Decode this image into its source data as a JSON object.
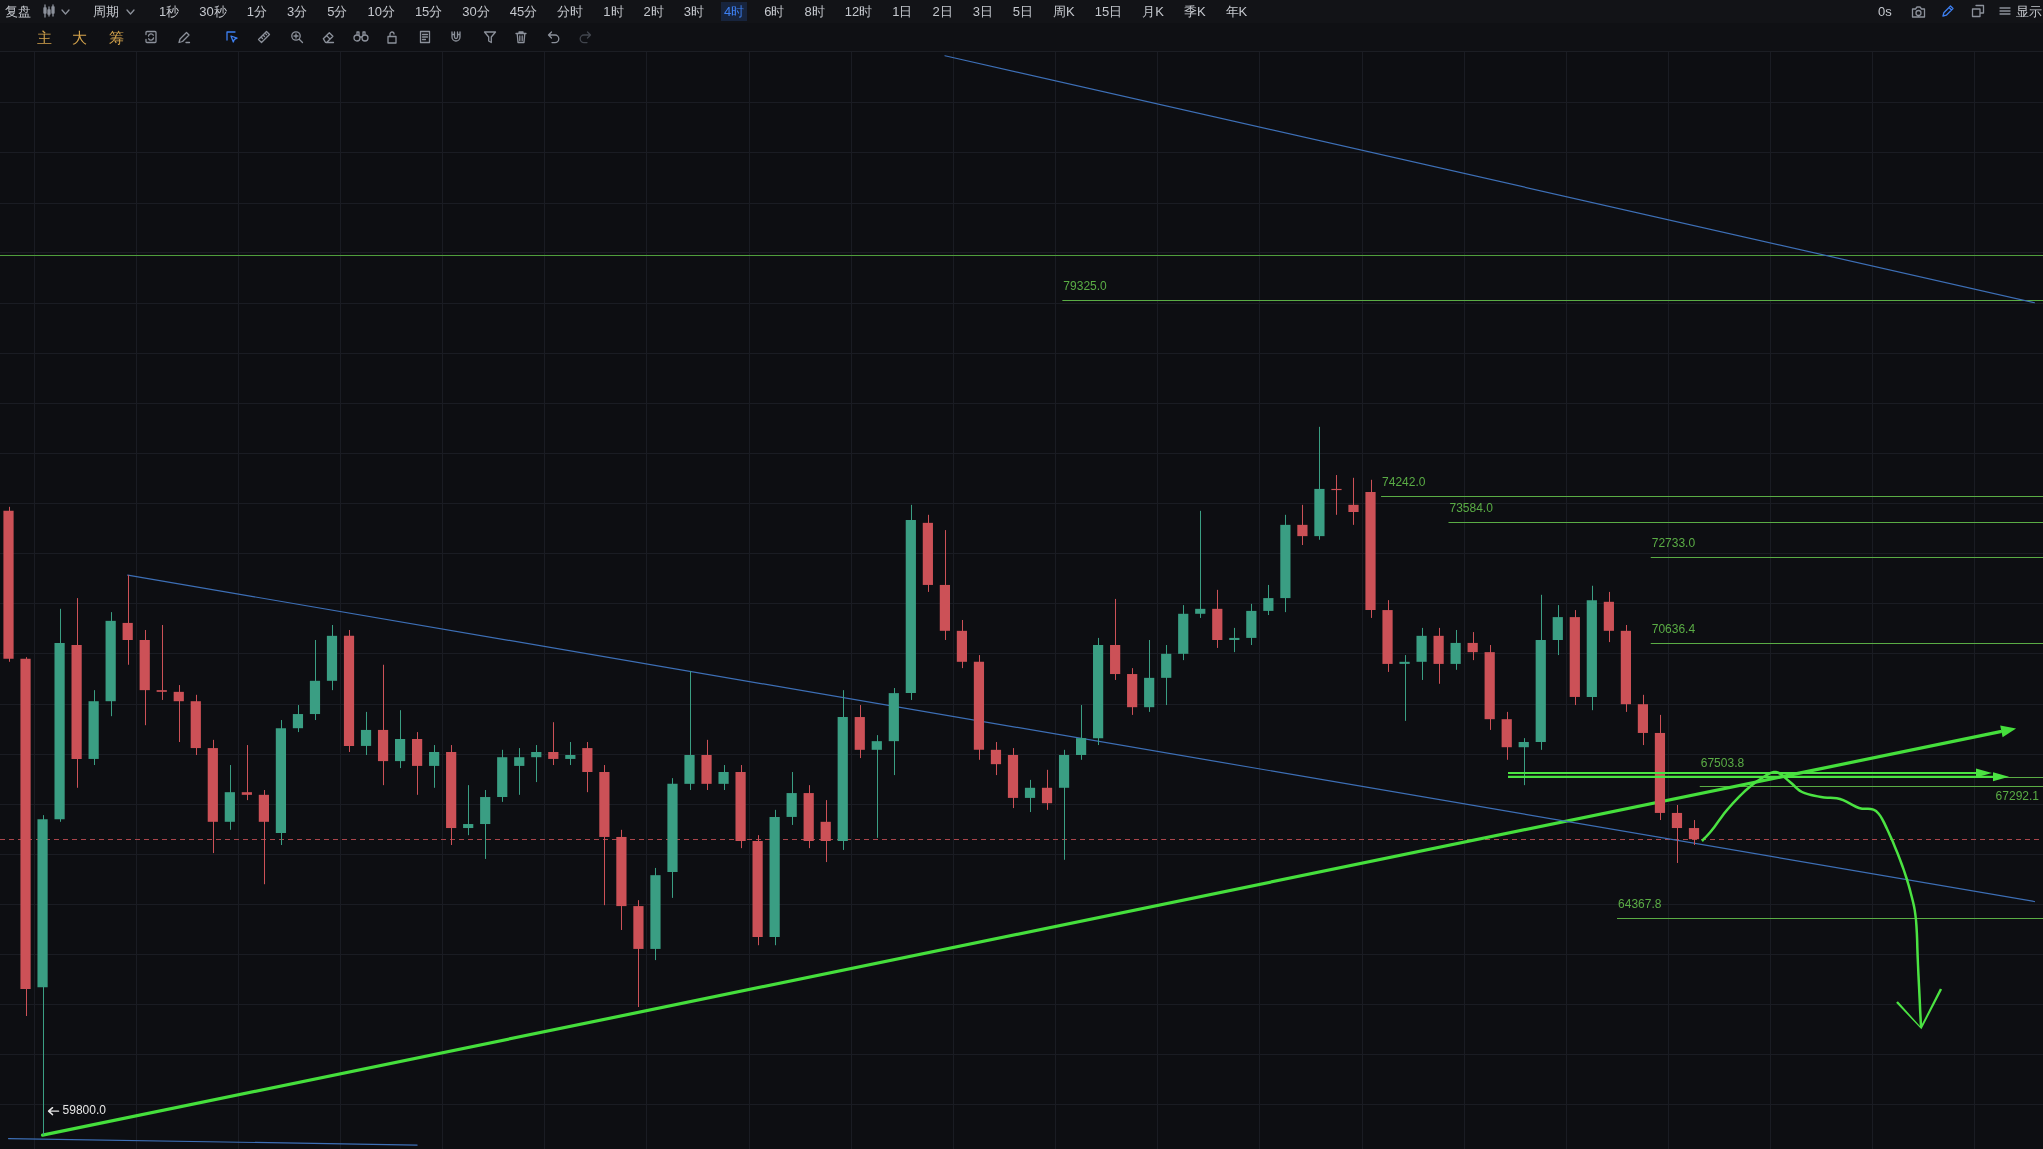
{
  "chart_data": {
    "type": "candlestick",
    "categories": [
      null,
      null,
      null,
      null,
      null,
      null,
      null,
      null,
      null,
      null,
      null,
      null,
      null,
      null,
      null,
      null,
      null,
      null,
      null,
      null,
      null,
      null,
      null,
      null,
      null,
      null,
      null,
      null,
      null,
      null,
      null,
      null,
      null,
      null,
      null,
      null,
      null,
      null,
      null,
      null,
      null,
      null,
      null,
      null,
      null,
      null,
      null,
      null,
      null,
      null,
      null,
      null,
      null,
      null,
      null,
      null,
      null,
      null,
      null,
      null,
      null,
      null,
      null,
      null,
      null,
      null,
      null,
      null,
      null,
      null,
      null,
      null,
      null,
      null,
      null,
      null,
      null,
      null,
      null,
      null,
      null,
      null,
      null,
      null,
      null,
      null,
      null,
      null,
      null,
      null,
      null,
      null,
      null,
      null,
      null,
      null,
      null,
      null,
      null,
      null,
      null,
      null,
      null,
      null,
      null,
      null,
      null,
      null,
      null,
      null,
      null,
      null,
      null,
      null,
      null,
      null,
      null,
      null,
      null,
      null
    ],
    "series": [
      {
        "ohlc": [
          [
            73870,
            73970,
            70190,
            70260
          ],
          [
            70260,
            70300,
            62260,
            62830
          ],
          [
            62870,
            66640,
            59800,
            66550
          ],
          [
            66550,
            71460,
            66490,
            70640
          ],
          [
            70590,
            71720,
            67260,
            67920
          ],
          [
            67920,
            69520,
            67780,
            69260
          ],
          [
            69260,
            71380,
            68910,
            71170
          ],
          [
            71120,
            72280,
            70120,
            70710
          ],
          [
            70710,
            70950,
            68700,
            69520
          ],
          [
            69520,
            71070,
            69290,
            69480
          ],
          [
            69480,
            69640,
            68310,
            69260
          ],
          [
            69260,
            69410,
            68010,
            68170
          ],
          [
            68170,
            68360,
            65790,
            66490
          ],
          [
            66490,
            67780,
            66310,
            67160
          ],
          [
            67160,
            68240,
            66980,
            67100
          ],
          [
            67100,
            67210,
            65100,
            66490
          ],
          [
            66240,
            68820,
            65970,
            68630
          ],
          [
            68630,
            69170,
            68540,
            68960
          ],
          [
            68960,
            70710,
            68820,
            69740
          ],
          [
            69740,
            71070,
            69520,
            70810
          ],
          [
            70810,
            70950,
            68080,
            68220
          ],
          [
            68220,
            69010,
            68010,
            68590
          ],
          [
            68590,
            70120,
            67320,
            67870
          ],
          [
            67870,
            69050,
            67710,
            68380
          ],
          [
            68380,
            68540,
            67100,
            67760
          ],
          [
            67760,
            68240,
            67260,
            68080
          ],
          [
            68080,
            68240,
            65970,
            66350
          ],
          [
            66350,
            67320,
            66190,
            66440
          ],
          [
            66440,
            67210,
            65660,
            67050
          ],
          [
            67050,
            68130,
            66940,
            67960
          ],
          [
            67760,
            68170,
            67100,
            67960
          ],
          [
            67960,
            68240,
            67390,
            68080
          ],
          [
            68080,
            68770,
            67780,
            67920
          ],
          [
            67920,
            68310,
            67780,
            68010
          ],
          [
            68170,
            68310,
            67160,
            67620
          ],
          [
            67620,
            67780,
            64640,
            66150
          ],
          [
            66150,
            66310,
            64100,
            64620
          ],
          [
            64620,
            64750,
            62450,
            63690
          ],
          [
            63690,
            65460,
            63450,
            65300
          ],
          [
            65370,
            67480,
            64800,
            67350
          ],
          [
            67350,
            69970,
            67210,
            68010
          ],
          [
            68010,
            68360,
            67210,
            67350
          ],
          [
            67350,
            67780,
            67210,
            67620
          ],
          [
            67620,
            67780,
            65900,
            66060
          ],
          [
            66060,
            66190,
            63770,
            63950
          ],
          [
            63950,
            66760,
            63770,
            66600
          ],
          [
            66600,
            67620,
            66420,
            67140
          ],
          [
            67140,
            67320,
            65900,
            66060
          ],
          [
            66490,
            66980,
            65590,
            66060
          ],
          [
            66060,
            69520,
            65860,
            68890
          ],
          [
            68890,
            69170,
            67940,
            68130
          ],
          [
            68130,
            68470,
            66130,
            68330
          ],
          [
            68330,
            69570,
            67550,
            69450
          ],
          [
            69450,
            74020,
            69290,
            73640
          ],
          [
            73570,
            73770,
            71870,
            72040
          ],
          [
            72040,
            73390,
            70710,
            70930
          ],
          [
            70930,
            71190,
            70040,
            70190
          ],
          [
            70190,
            70350,
            67900,
            68130
          ],
          [
            68130,
            68310,
            67550,
            67800
          ],
          [
            68010,
            68170,
            66800,
            67030
          ],
          [
            67030,
            67440,
            66710,
            67260
          ],
          [
            67260,
            67670,
            66760,
            66910
          ],
          [
            67260,
            68130,
            65640,
            68010
          ],
          [
            68010,
            69170,
            67900,
            68400
          ],
          [
            68400,
            70760,
            68240,
            70590
          ],
          [
            70590,
            71700,
            69760,
            69900
          ],
          [
            69900,
            70040,
            68940,
            69120
          ],
          [
            69120,
            70710,
            69010,
            69810
          ],
          [
            69810,
            70590,
            69170,
            70380
          ],
          [
            70380,
            71550,
            70230,
            71340
          ],
          [
            71340,
            73870,
            71240,
            71460
          ],
          [
            71460,
            71920,
            70520,
            70710
          ],
          [
            70710,
            71000,
            70420,
            70760
          ],
          [
            70760,
            71580,
            70590,
            71410
          ],
          [
            71410,
            72040,
            71310,
            71720
          ],
          [
            71720,
            73770,
            71380,
            73520
          ],
          [
            73520,
            74020,
            73020,
            73240
          ],
          [
            73240,
            76000,
            73150,
            74420
          ],
          [
            74420,
            74770,
            73770,
            74390
          ],
          [
            74020,
            74700,
            73520,
            73840
          ],
          [
            74340,
            74650,
            71240,
            71430
          ],
          [
            71430,
            71670,
            69950,
            70140
          ],
          [
            70140,
            70350,
            68800,
            70190
          ],
          [
            70190,
            71000,
            69760,
            70810
          ],
          [
            70810,
            71000,
            69670,
            70140
          ],
          [
            70140,
            70950,
            70000,
            70640
          ],
          [
            70640,
            70900,
            70230,
            70420
          ],
          [
            70420,
            70590,
            68590,
            68840
          ],
          [
            68840,
            69010,
            67900,
            68190
          ],
          [
            68190,
            68400,
            67320,
            68310
          ],
          [
            68310,
            71800,
            68130,
            70710
          ],
          [
            70710,
            71550,
            70350,
            71260
          ],
          [
            71260,
            71430,
            69170,
            69360
          ],
          [
            69360,
            72020,
            69050,
            71670
          ],
          [
            71630,
            71870,
            70660,
            70930
          ],
          [
            70930,
            71070,
            69010,
            69190
          ],
          [
            69190,
            69410,
            68240,
            68520
          ],
          [
            68520,
            68940,
            66530,
            66690
          ],
          [
            66690,
            66870,
            65570,
            66350
          ],
          [
            66350,
            66530,
            65970,
            66100
          ],
          null,
          null,
          null,
          null,
          null,
          null,
          null,
          null,
          null,
          null,
          null,
          null,
          null,
          null,
          null,
          null,
          null,
          null,
          null,
          null
        ],
        "colors": [
          "#cc5157",
          "#cc5157",
          "#3a9e83",
          "#3a9e83",
          "#cc5157",
          "#3a9e83",
          "#3a9e83",
          "#cc5157",
          "#cc5157",
          "#cc5157",
          "#cc5157",
          "#cc5157",
          "#cc5157",
          "#3a9e83",
          "#cc5157",
          "#cc5157",
          "#3a9e83",
          "#3a9e83",
          "#3a9e83",
          "#3a9e83",
          "#cc5157",
          "#3a9e83",
          "#cc5157",
          "#3a9e83",
          "#cc5157",
          "#3a9e83",
          "#cc5157",
          "#3a9e83",
          "#3a9e83",
          "#3a9e83",
          "#3a9e83",
          "#3a9e83",
          "#cc5157",
          "#3a9e83",
          "#cc5157",
          "#cc5157",
          "#cc5157",
          "#cc5157",
          "#3a9e83",
          "#3a9e83",
          "#3a9e83",
          "#cc5157",
          "#3a9e83",
          "#cc5157",
          "#cc5157",
          "#3a9e83",
          "#3a9e83",
          "#cc5157",
          "#cc5157",
          "#3a9e83",
          "#cc5157",
          "#3a9e83",
          "#3a9e83",
          "#3a9e83",
          "#cc5157",
          "#cc5157",
          "#cc5157",
          "#cc5157",
          "#cc5157",
          "#cc5157",
          "#3a9e83",
          "#cc5157",
          "#3a9e83",
          "#3a9e83",
          "#3a9e83",
          "#cc5157",
          "#cc5157",
          "#3a9e83",
          "#3a9e83",
          "#3a9e83",
          "#3a9e83",
          "#cc5157",
          "#3a9e83",
          "#3a9e83",
          "#3a9e83",
          "#3a9e83",
          "#cc5157",
          "#3a9e83",
          "#cc5157",
          "#cc5157",
          "#cc5157",
          "#cc5157",
          "#3a9e83",
          "#3a9e83",
          "#cc5157",
          "#3a9e83",
          "#cc5157",
          "#cc5157",
          "#cc5157",
          "#3a9e83",
          "#3a9e83",
          "#3a9e83",
          "#cc5157",
          "#3a9e83",
          "#cc5157",
          "#cc5157",
          "#cc5157",
          "#cc5157",
          "#cc5157",
          "#cc5157",
          null,
          null,
          null,
          null,
          null,
          null,
          null,
          null,
          null,
          null,
          null,
          null,
          null,
          null,
          null,
          null,
          null,
          null,
          null,
          null
        ]
      },
      {
        "type": "line",
        "color": "#3d6fb6",
        "values": [
          null,
          null,
          null,
          null,
          null,
          null,
          null,
          null,
          null,
          null,
          null,
          null,
          null,
          null,
          null,
          null,
          null,
          null,
          null,
          null,
          null,
          null,
          null,
          null,
          null,
          null,
          null,
          null,
          null,
          null,
          null,
          null,
          null,
          null,
          null,
          null,
          null,
          null,
          null,
          null,
          null,
          null,
          null,
          null,
          null,
          null,
          null,
          null,
          null,
          null,
          null,
          null,
          null,
          null,
          null,
          86170,
          null,
          null,
          null,
          null,
          null,
          null,
          null,
          null,
          null,
          null,
          null,
          null,
          null,
          null,
          null,
          null,
          null,
          null,
          null,
          null,
          null,
          null,
          null,
          null,
          null,
          null,
          null,
          null,
          null,
          null,
          null,
          null,
          null,
          null,
          null,
          null,
          null,
          null,
          null,
          null,
          null,
          null,
          null,
          null,
          null,
          null,
          null,
          null,
          null,
          null,
          null,
          null,
          null,
          null,
          null,
          null,
          null,
          null,
          null,
          null,
          null,
          null,
          null,
          79260
        ]
      },
      {
        "type": "line",
        "color": "#3d6fb6",
        "values": [
          null,
          null,
          null,
          null,
          null,
          null,
          null,
          72280,
          null,
          null,
          null,
          null,
          null,
          null,
          null,
          null,
          null,
          null,
          null,
          null,
          null,
          null,
          null,
          null,
          null,
          null,
          null,
          null,
          null,
          null,
          null,
          null,
          null,
          null,
          null,
          null,
          null,
          null,
          null,
          null,
          null,
          null,
          null,
          null,
          null,
          null,
          null,
          null,
          null,
          null,
          null,
          null,
          null,
          null,
          null,
          null,
          null,
          null,
          null,
          null,
          null,
          null,
          null,
          null,
          null,
          null,
          null,
          null,
          null,
          null,
          null,
          null,
          null,
          null,
          null,
          null,
          null,
          null,
          null,
          null,
          null,
          null,
          null,
          null,
          null,
          null,
          null,
          null,
          null,
          null,
          null,
          null,
          null,
          null,
          null,
          null,
          null,
          null,
          null,
          null,
          null,
          null,
          null,
          null,
          null,
          null,
          null,
          null,
          null,
          null,
          null,
          null,
          null,
          null,
          null,
          null,
          null,
          null,
          null,
          64720
        ]
      },
      {
        "type": "line",
        "color": "#3d6fb6",
        "values": [
          59730,
          null,
          null,
          null,
          null,
          null,
          null,
          null,
          null,
          null,
          null,
          null,
          null,
          null,
          null,
          null,
          null,
          null,
          null,
          null,
          null,
          null,
          null,
          null,
          59600,
          null,
          null,
          null,
          null,
          null,
          null,
          null,
          null,
          null,
          null,
          null,
          null,
          null,
          null,
          null,
          null,
          null,
          null,
          null,
          null,
          null,
          null,
          null,
          null,
          null,
          null,
          null,
          null,
          null,
          null,
          null,
          null,
          null,
          null,
          null,
          null,
          null,
          null,
          null,
          null,
          null,
          null,
          null,
          null,
          null,
          null,
          null,
          null,
          null,
          null,
          null,
          null,
          null,
          null,
          null,
          null,
          null,
          null,
          null,
          null,
          null,
          null,
          null,
          null,
          null,
          null,
          null,
          null,
          null,
          null,
          null,
          null,
          null,
          null,
          null,
          null,
          null,
          null,
          null,
          null,
          null,
          null,
          null,
          null,
          null,
          null,
          null,
          null,
          null,
          null,
          null,
          null,
          null,
          null,
          null
        ]
      },
      {
        "type": "line",
        "color": "#45df3c",
        "values": [
          null,
          null,
          59800,
          null,
          null,
          null,
          null,
          null,
          null,
          null,
          null,
          null,
          null,
          null,
          null,
          null,
          null,
          null,
          null,
          null,
          null,
          null,
          null,
          null,
          null,
          null,
          null,
          null,
          null,
          null,
          null,
          null,
          null,
          null,
          null,
          null,
          null,
          null,
          null,
          null,
          null,
          null,
          null,
          null,
          null,
          null,
          null,
          null,
          null,
          null,
          null,
          null,
          null,
          null,
          null,
          null,
          null,
          null,
          null,
          null,
          null,
          null,
          null,
          null,
          null,
          null,
          null,
          null,
          null,
          null,
          null,
          null,
          null,
          null,
          null,
          null,
          null,
          null,
          null,
          null,
          null,
          null,
          null,
          null,
          null,
          null,
          null,
          null,
          null,
          null,
          null,
          null,
          null,
          null,
          null,
          null,
          null,
          null,
          null,
          null,
          null,
          null,
          null,
          null,
          null,
          null,
          null,
          null,
          null,
          null,
          null,
          null,
          null,
          null,
          null,
          null,
          null,
          68550,
          null,
          null
        ]
      }
    ],
    "ylim": [
      59520,
      86280
    ],
    "yticks": [
      {
        "value": 60420,
        "label": null
      },
      {
        "value": 61450,
        "label": null
      },
      {
        "value": 62500,
        "label": null
      },
      {
        "value": 63570,
        "label": null
      },
      {
        "value": 64660,
        "label": null
      },
      {
        "value": 65760,
        "label": null
      },
      {
        "value": 66890,
        "label": null
      },
      {
        "value": 68030,
        "label": null
      },
      {
        "value": 69190,
        "label": null
      },
      {
        "value": 70380,
        "label": null
      },
      {
        "value": 71580,
        "label": null
      },
      {
        "value": 72810,
        "label": null
      },
      {
        "value": 74050,
        "label": null
      },
      {
        "value": 75320,
        "label": null
      },
      {
        "value": 76610,
        "label": null
      },
      {
        "value": 77920,
        "label": null
      },
      {
        "value": 79250,
        "label": null
      },
      {
        "value": 80610,
        "label": null
      },
      {
        "value": 81980,
        "label": null
      },
      {
        "value": 83390,
        "label": null
      },
      {
        "value": 84810,
        "label": null
      }
    ],
    "log": true,
    "grid": true,
    "tick_labels": false,
    "ref_lines": [
      {
        "axis": "y",
        "value": 80560,
        "color": "#4f9e3c"
      },
      {
        "axis": "y",
        "value": 79325,
        "label": "79325.0",
        "color": "#5aac45"
      },
      {
        "axis": "y",
        "value": 74242,
        "label": "74242.0",
        "color": "#5aac45"
      },
      {
        "axis": "y",
        "value": 73584,
        "label": "73584.0",
        "color": "#5aac45"
      },
      {
        "axis": "y",
        "value": 72733,
        "label": "72733.0",
        "color": "#5aac45"
      },
      {
        "axis": "y",
        "value": 70636.4,
        "label": "70636.4",
        "color": "#5aac45"
      },
      {
        "axis": "y",
        "value": 67503.8,
        "label": "67503.8",
        "color": "#5aac45"
      },
      {
        "axis": "y",
        "value": 67292.1,
        "label": "67292.1",
        "color": "#5aac45"
      },
      {
        "axis": "y",
        "value": 64367.8,
        "label": "64367.8",
        "color": "#5aac45"
      },
      {
        "axis": "y",
        "value": 66100,
        "color": "#a9454b",
        "line_style": "dashed"
      }
    ],
    "annotations": [
      "复盘",
      "周期",
      "1秒",
      "30秒",
      "1分",
      "3分",
      "5分",
      "10分",
      "15分",
      "30分",
      "45分",
      "分时",
      "1时",
      "2时",
      "3时",
      "4时",
      "6时",
      "8时",
      "12时",
      "1日",
      "2日",
      "3日",
      "5日",
      "周K",
      "15日",
      "月K",
      "季K",
      "年K",
      "0s",
      "显示",
      "主",
      "大",
      "筹",
      {
        "text": "59800.0",
        "y": 59800
      }
    ]
  }
}
